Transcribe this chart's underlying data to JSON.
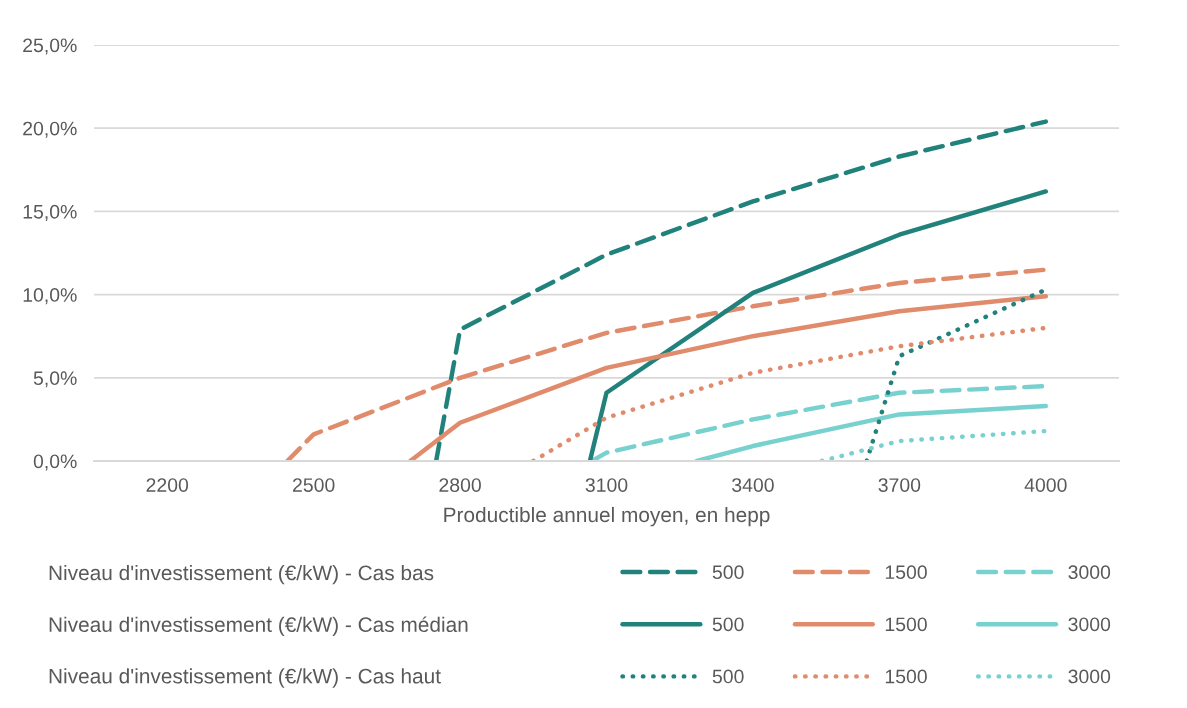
{
  "chart_data": {
    "type": "line",
    "xlabel": "Productible annuel moyen, en hepp",
    "xlim": [
      2050,
      4150
    ],
    "xticks": [
      2200,
      2500,
      2800,
      3100,
      3400,
      3700,
      4000
    ],
    "ylim": [
      0,
      25
    ],
    "yticks": [
      {
        "value": 0,
        "label": "0,0%"
      },
      {
        "value": 5,
        "label": "5,0%"
      },
      {
        "value": 10,
        "label": "10,0%"
      },
      {
        "value": 15,
        "label": "15,0%"
      },
      {
        "value": 20,
        "label": "20,0%"
      },
      {
        "value": 25,
        "label": "25,0%"
      }
    ],
    "grid": "y",
    "legend": "bottom",
    "marker": "none",
    "annotations": [
      "Niveau d'investissement (€/kW) - Cas bas",
      "Niveau d'investissement (€/kW) - Cas médian",
      "Niveau d'investissement (€/kW) - Cas haut"
    ],
    "series": [
      {
        "name": "500",
        "color": "#21827c",
        "line_style": "dashed",
        "x": [
          2751,
          2800,
          3100,
          3400,
          3700,
          4000
        ],
        "values": [
          0,
          7.9,
          12.4,
          15.6,
          18.3,
          20.4
        ]
      },
      {
        "name": "1500",
        "color": "#e08b6b",
        "line_style": "dashed",
        "x": [
          2446,
          2500,
          2800,
          3100,
          3400,
          3700,
          4000
        ],
        "values": [
          0,
          1.6,
          5.0,
          7.7,
          9.3,
          10.7,
          11.5
        ]
      },
      {
        "name": "3000",
        "color": "#77d1cf",
        "line_style": "dashed",
        "x": [
          3070,
          3100,
          3400,
          3700,
          4000
        ],
        "values": [
          0,
          0.5,
          2.5,
          4.1,
          4.5
        ]
      },
      {
        "name": "500",
        "color": "#21827c",
        "line_style": "solid",
        "x": [
          3066,
          3100,
          3400,
          3700,
          4000
        ],
        "values": [
          0,
          4.1,
          10.1,
          13.6,
          16.2
        ]
      },
      {
        "name": "1500",
        "color": "#e08b6b",
        "line_style": "solid",
        "x": [
          2698,
          2800,
          3100,
          3400,
          3700,
          4000
        ],
        "values": [
          0,
          2.3,
          5.6,
          7.5,
          9.0,
          9.9
        ]
      },
      {
        "name": "3000",
        "color": "#77d1cf",
        "line_style": "solid",
        "x": [
          3285,
          3400,
          3700,
          4000
        ],
        "values": [
          0,
          0.9,
          2.8,
          3.3
        ]
      },
      {
        "name": "500",
        "color": "#21827c",
        "line_style": "dotted",
        "x": [
          3633,
          3700,
          4000
        ],
        "values": [
          0,
          6.3,
          10.3
        ]
      },
      {
        "name": "1500",
        "color": "#e08b6b",
        "line_style": "dotted",
        "x": [
          2950,
          3100,
          3400,
          3700,
          4000
        ],
        "values": [
          0,
          2.6,
          5.3,
          6.9,
          8.0
        ]
      },
      {
        "name": "3000",
        "color": "#77d1cf",
        "line_style": "dotted",
        "x": [
          3541,
          3700,
          4000
        ],
        "values": [
          0,
          1.2,
          1.8
        ]
      }
    ]
  }
}
